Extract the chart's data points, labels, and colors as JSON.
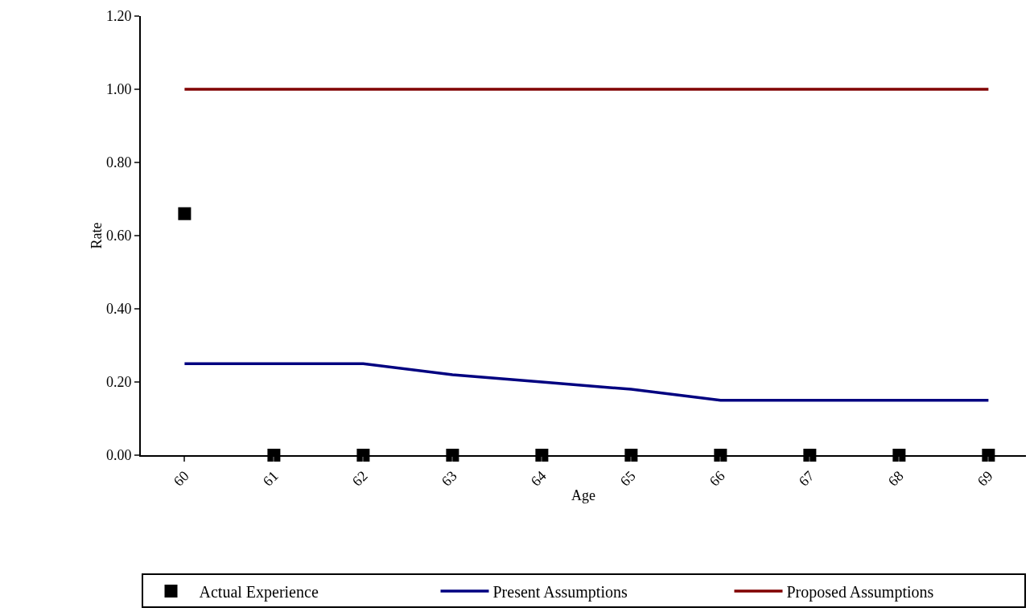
{
  "chart_data": {
    "type": "line",
    "xlabel": "Age",
    "ylabel": "Rate",
    "categories": [
      "60",
      "61",
      "62",
      "63",
      "64",
      "65",
      "66",
      "67",
      "68",
      "69"
    ],
    "series": [
      {
        "name": "Actual Experience",
        "type": "scatter",
        "marker": "square",
        "color": "#000000",
        "values": [
          0.66,
          0,
          0,
          0,
          0,
          0,
          0,
          0,
          0,
          0
        ]
      },
      {
        "name": "Present Assumptions",
        "color": "#000080",
        "values": [
          0.25,
          0.25,
          0.25,
          0.22,
          0.2,
          0.18,
          0.15,
          0.15,
          0.15,
          0.15
        ]
      },
      {
        "name": "Proposed Assumptions",
        "color": "#800000",
        "values": [
          1,
          1,
          1,
          1,
          1,
          1,
          1,
          1,
          1,
          1
        ]
      }
    ],
    "ylim": [
      0,
      1.2
    ],
    "yticks": [
      {
        "value": 0,
        "label": "0.00"
      },
      {
        "value": 0.2,
        "label": "0.20"
      },
      {
        "value": 0.4,
        "label": "0.40"
      },
      {
        "value": 0.6,
        "label": "0.60"
      },
      {
        "value": 0.8,
        "label": "0.80"
      },
      {
        "value": 1,
        "label": "1.00"
      },
      {
        "value": 1.2,
        "label": "1.20"
      }
    ],
    "grid": false,
    "legend": "bottom",
    "marker": "none",
    "line_style": "solid"
  }
}
